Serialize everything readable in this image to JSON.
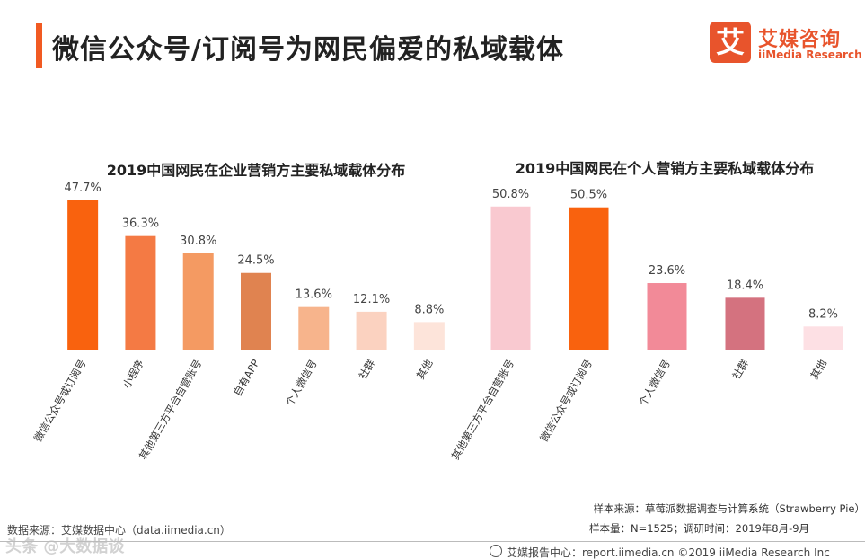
{
  "header": {
    "title": "微信公众号/订阅号为网民偏爱的私域载体",
    "logo_mark": "艾",
    "logo_cn": "艾媒咨询",
    "logo_en": "iiMedia Research"
  },
  "chart_data": [
    {
      "type": "bar",
      "title": "2019中国网民在企业营销方主要私域载体分布",
      "categories": [
        "微信公众号或订阅号",
        "小程序",
        "其他第三方平台自营账号",
        "自有APP",
        "个人微信号",
        "社群",
        "其他"
      ],
      "values": [
        47.7,
        36.3,
        30.8,
        24.5,
        13.6,
        12.1,
        8.8
      ],
      "value_labels": [
        "47.7%",
        "36.3%",
        "30.8%",
        "24.5%",
        "13.6%",
        "12.1%",
        "8.8%"
      ],
      "colors": [
        "#f9620e",
        "#f47a44",
        "#f49a62",
        "#e08350",
        "#f7b48c",
        "#fbd2c0",
        "#fde4da"
      ],
      "ylim": [
        0,
        50
      ]
    },
    {
      "type": "bar",
      "title": "2019中国网民在个人营销方主要私域载体分布",
      "categories": [
        "其他第三方平台自营账号",
        "微信公众号或订阅号",
        "个人微信号",
        "社群",
        "其他"
      ],
      "values": [
        50.8,
        50.5,
        23.6,
        18.4,
        8.2
      ],
      "value_labels": [
        "50.8%",
        "50.5%",
        "23.6%",
        "18.4%",
        "8.2%"
      ],
      "colors": [
        "#f9c9d0",
        "#f9620e",
        "#f28a98",
        "#d4727f",
        "#fde0e4"
      ],
      "ylim": [
        0,
        52
      ]
    }
  ],
  "notes": {
    "sample_source": "样本来源：草莓派数据调查与计算系统（Strawberry Pie）",
    "sample_size": "样本量：N=1525；调研时间：2019年8月-9月",
    "data_source": "数据来源：艾媒数据中心（data.iimedia.cn）"
  },
  "footer": {
    "text": "艾媒报告中心：report.iimedia.cn ©2019  iiMedia Research  Inc",
    "watermark": "头条 @大数据谈"
  }
}
